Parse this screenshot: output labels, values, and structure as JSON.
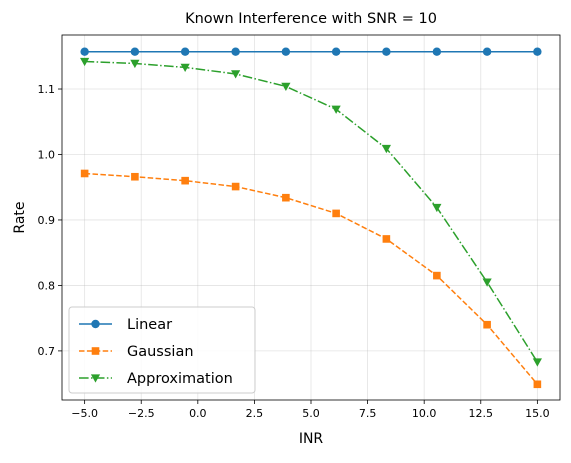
{
  "chart_data": {
    "type": "line",
    "title": "Known Interference with SNR = 10",
    "xlabel": "INR",
    "ylabel": "Rate",
    "xlim": [
      -6.0,
      16.0
    ],
    "ylim": [
      0.625,
      1.1825
    ],
    "xticks": [
      -5.0,
      -2.5,
      0.0,
      2.5,
      5.0,
      7.5,
      10.0,
      12.5,
      15.0
    ],
    "xtick_labels": [
      "−5.0",
      "−2.5",
      "0.0",
      "2.5",
      "5.0",
      "7.5",
      "10.0",
      "12.5",
      "15.0"
    ],
    "yticks": [
      0.7,
      0.8,
      0.9,
      1.0,
      1.1
    ],
    "ytick_labels": [
      "0.7",
      "0.8",
      "0.9",
      "1.0",
      "1.1"
    ],
    "grid": true,
    "legend_position": "bottom-left",
    "x": [
      -5.0,
      -2.78,
      -0.56,
      1.67,
      3.89,
      6.11,
      8.33,
      10.56,
      12.78,
      15.0
    ],
    "series": [
      {
        "name": "Linear",
        "color": "#1f77b4",
        "marker": "circle",
        "linestyle": "solid",
        "values": [
          1.157,
          1.157,
          1.157,
          1.157,
          1.157,
          1.157,
          1.157,
          1.157,
          1.157,
          1.157
        ]
      },
      {
        "name": "Gaussian",
        "color": "#ff7f0e",
        "marker": "square",
        "linestyle": "dashed",
        "values": [
          0.971,
          0.966,
          0.96,
          0.951,
          0.934,
          0.91,
          0.871,
          0.815,
          0.74,
          0.649
        ]
      },
      {
        "name": "Approximation",
        "color": "#2ca02c",
        "marker": "triangle-down",
        "linestyle": "dashdot",
        "values": [
          1.142,
          1.139,
          1.133,
          1.123,
          1.104,
          1.069,
          1.009,
          0.919,
          0.805,
          0.683
        ]
      }
    ]
  }
}
